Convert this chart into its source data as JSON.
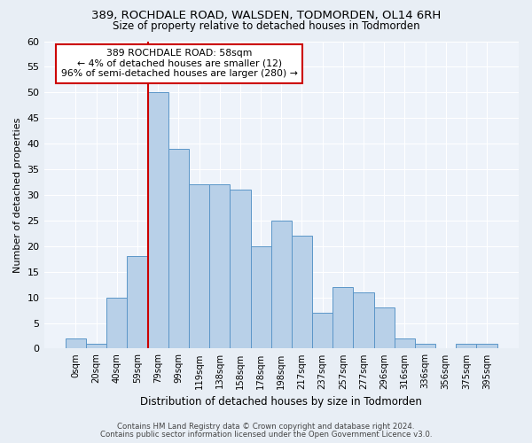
{
  "title1": "389, ROCHDALE ROAD, WALSDEN, TODMORDEN, OL14 6RH",
  "title2": "Size of property relative to detached houses in Todmorden",
  "xlabel": "Distribution of detached houses by size in Todmorden",
  "ylabel": "Number of detached properties",
  "bar_labels": [
    "0sqm",
    "20sqm",
    "40sqm",
    "59sqm",
    "79sqm",
    "99sqm",
    "119sqm",
    "138sqm",
    "158sqm",
    "178sqm",
    "198sqm",
    "217sqm",
    "237sqm",
    "257sqm",
    "277sqm",
    "296sqm",
    "316sqm",
    "336sqm",
    "356sqm",
    "375sqm",
    "395sqm"
  ],
  "bar_values": [
    2,
    1,
    10,
    18,
    50,
    39,
    32,
    32,
    31,
    20,
    25,
    22,
    7,
    12,
    11,
    8,
    2,
    1,
    0,
    1,
    1
  ],
  "bar_color": "#b8d0e8",
  "bar_edge_color": "#5b96c8",
  "vline_color": "#cc0000",
  "annotation_text": "389 ROCHDALE ROAD: 58sqm\n← 4% of detached houses are smaller (12)\n96% of semi-detached houses are larger (280) →",
  "annotation_box_color": "#ffffff",
  "annotation_box_edge_color": "#cc0000",
  "ylim": [
    0,
    60
  ],
  "yticks": [
    0,
    5,
    10,
    15,
    20,
    25,
    30,
    35,
    40,
    45,
    50,
    55,
    60
  ],
  "footer_line1": "Contains HM Land Registry data © Crown copyright and database right 2024.",
  "footer_line2": "Contains public sector information licensed under the Open Government Licence v3.0.",
  "bg_color": "#e8eef5",
  "plot_bg_color": "#eef3fa",
  "grid_color": "#ffffff",
  "vline_idx": 3.5
}
